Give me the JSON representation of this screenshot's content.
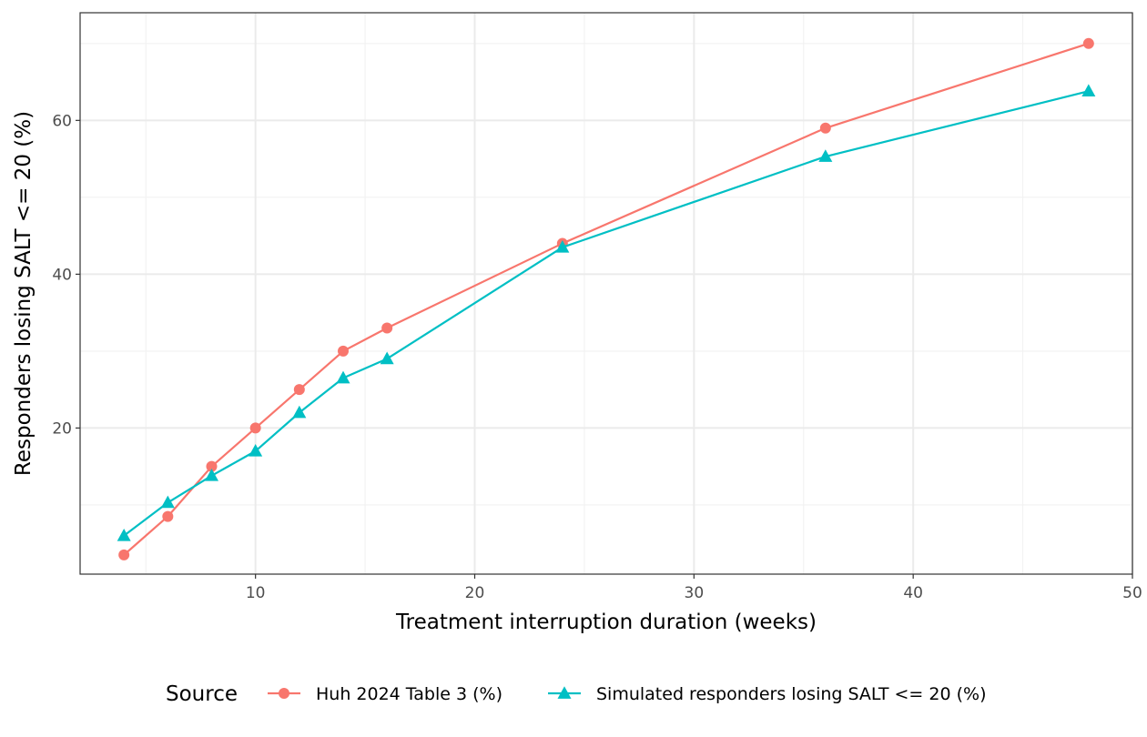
{
  "chart_data": {
    "type": "line",
    "xlabel": "Treatment interruption duration (weeks)",
    "ylabel": "Responders losing SALT <= 20 (%)",
    "xlim": [
      2,
      50
    ],
    "ylim": [
      1,
      74
    ],
    "x_ticks": [
      10,
      20,
      30,
      40,
      50
    ],
    "y_ticks": [
      20,
      40,
      60
    ],
    "grid": true,
    "legend_title": "Source",
    "legend_position": "bottom",
    "series": [
      {
        "name": "Huh 2024 Table 3 (%)",
        "color": "#F8766D",
        "marker": "circle",
        "x": [
          4,
          6,
          8,
          10,
          12,
          14,
          16,
          24,
          36,
          48
        ],
        "y": [
          3.5,
          8.5,
          15,
          20,
          25,
          30,
          33,
          44,
          59,
          70
        ]
      },
      {
        "name": "Simulated responders losing SALT <= 20 (%)",
        "color": "#00BFC4",
        "marker": "triangle",
        "x": [
          4,
          6,
          8,
          10,
          12,
          14,
          16,
          24,
          36,
          48
        ],
        "y": [
          6,
          10.3,
          13.8,
          17,
          22,
          26.5,
          29,
          43.5,
          55.3,
          63.8
        ]
      }
    ]
  }
}
